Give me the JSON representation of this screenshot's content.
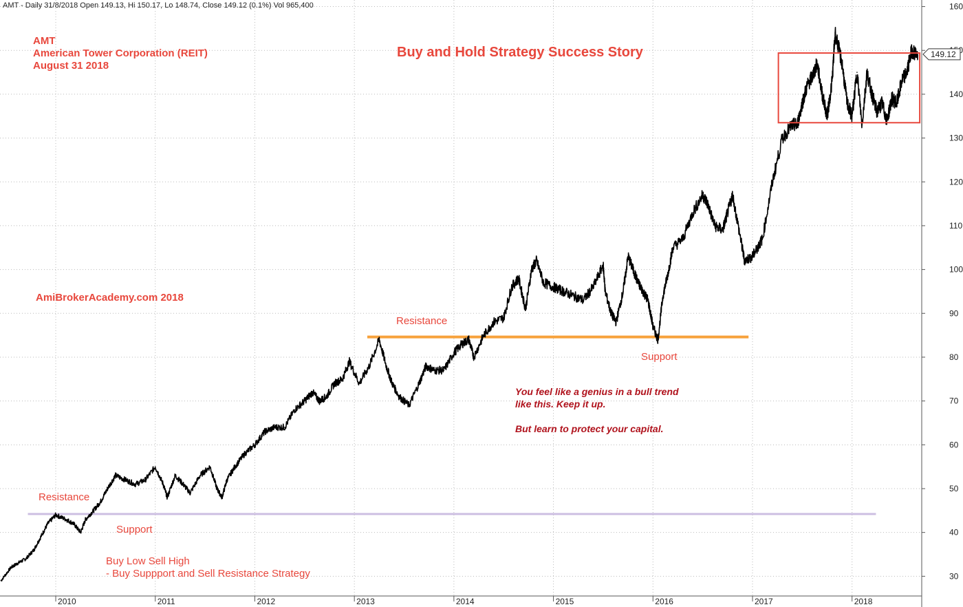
{
  "header": "AMT - Daily 31/8/2018 Open 149.13, Hi 150.17, Lo 148.74, Close 149.12 (0.1%) Vol 965,400",
  "annotations": {
    "ticker": "AMT",
    "company": "American Tower Corporation (REIT)",
    "date": "August 31 2018",
    "title": "Buy and Hold Strategy Success Story",
    "website": "AmiBrokerAcademy.com  2018",
    "resistance_upper": "Resistance",
    "support_upper": "Support",
    "resistance_lower": "Resistance",
    "support_lower": "Support",
    "strategy_line1": "Buy Low Sell High",
    "strategy_line2": "- Buy Suppport and Sell Resistance Strategy",
    "note_line1": "You feel like a genius in a bull trend",
    "note_line2": "like this. Keep it up.",
    "note_line3": "But learn to protect your capital."
  },
  "colors": {
    "annotation": "#e8473c",
    "note": "#b0121c",
    "upper_level_line": "#f7a23c",
    "lower_level_line": "#cdbfe2",
    "box": "#e8473c",
    "price": "#000000"
  },
  "chart_data": {
    "type": "line",
    "title": "Buy and Hold Strategy Success Story",
    "xlabel": "",
    "ylabel": "",
    "xlim": [
      2009.44,
      2018.7
    ],
    "ylim": [
      25.5,
      161.5
    ],
    "y_ticks": [
      30,
      40,
      50,
      60,
      70,
      80,
      90,
      100,
      110,
      120,
      130,
      140,
      150,
      160
    ],
    "x_ticks": [
      {
        "year": 2010,
        "label": "2010"
      },
      {
        "year": 2011,
        "label": "2011"
      },
      {
        "year": 2012,
        "label": "2012"
      },
      {
        "year": 2013,
        "label": "2013"
      },
      {
        "year": 2014,
        "label": "2014"
      },
      {
        "year": 2015,
        "label": "2015"
      },
      {
        "year": 2016,
        "label": "2016"
      },
      {
        "year": 2017,
        "label": "2017"
      },
      {
        "year": 2018,
        "label": "2018"
      }
    ],
    "grid": true,
    "last_close": 149.12,
    "last_close_label": "149.12",
    "levels": [
      {
        "name": "upper",
        "value": 84.6,
        "x_start": 2013.13,
        "x_end": 2016.96
      },
      {
        "name": "lower",
        "value": 44.2,
        "x_start": 2009.72,
        "x_end": 2018.24
      }
    ],
    "box": {
      "x_start": 2017.26,
      "x_end": 2018.68,
      "y_low": 133.5,
      "y_high": 149.4
    },
    "series": [
      {
        "x": [
          2009.45,
          2009.55,
          2009.62,
          2009.7,
          2009.78,
          2009.85,
          2009.92,
          2010.0,
          2010.1,
          2010.18,
          2010.25,
          2010.3,
          2010.38,
          2010.45,
          2010.52,
          2010.6,
          2010.7,
          2010.8,
          2010.9,
          2011.0,
          2011.08,
          2011.12,
          2011.2,
          2011.28,
          2011.35,
          2011.45,
          2011.55,
          2011.62,
          2011.67,
          2011.72,
          2011.8,
          2011.9,
          2012.0,
          2012.1,
          2012.2,
          2012.3,
          2012.4,
          2012.5,
          2012.58,
          2012.65,
          2012.72,
          2012.8,
          2012.88,
          2012.95,
          2013.05,
          2013.15,
          2013.25,
          2013.32,
          2013.38,
          2013.45,
          2013.55,
          2013.65,
          2013.72,
          2013.8,
          2013.9,
          2014.0,
          2014.08,
          2014.15,
          2014.2,
          2014.3,
          2014.4,
          2014.5,
          2014.58,
          2014.65,
          2014.72,
          2014.78,
          2014.83,
          2014.9,
          2015.0,
          2015.1,
          2015.2,
          2015.3,
          2015.4,
          2015.5,
          2015.52,
          2015.58,
          2015.63,
          2015.7,
          2015.75,
          2015.8,
          2015.85,
          2015.9,
          2015.95,
          2016.0,
          2016.05,
          2016.1,
          2016.15,
          2016.2,
          2016.3,
          2016.4,
          2016.5,
          2016.55,
          2016.62,
          2016.7,
          2016.75,
          2016.8,
          2016.88,
          2016.92,
          2017.0,
          2017.05,
          2017.1,
          2017.2,
          2017.3,
          2017.4,
          2017.45,
          2017.5,
          2017.55,
          2017.6,
          2017.65,
          2017.7,
          2017.75,
          2017.8,
          2017.83,
          2017.9,
          2017.95,
          2018.0,
          2018.05,
          2018.1,
          2018.15,
          2018.2,
          2018.25,
          2018.3,
          2018.35,
          2018.4,
          2018.45,
          2018.5,
          2018.55,
          2018.6,
          2018.66
        ],
        "values": [
          29,
          32,
          33,
          34,
          36,
          39,
          42,
          44,
          43,
          42,
          40,
          43,
          45,
          47,
          50,
          53,
          52,
          51,
          52,
          55,
          51,
          48,
          53,
          51,
          49,
          53,
          55,
          50,
          48,
          52,
          55,
          58,
          60,
          63,
          64,
          64,
          68,
          70,
          72,
          70,
          71,
          74,
          75,
          79,
          74,
          78,
          84,
          78,
          74,
          71,
          69,
          74,
          78,
          77,
          77,
          81,
          83,
          84,
          80,
          85,
          88,
          89,
          96,
          98,
          91,
          100,
          102,
          97,
          96,
          95,
          94,
          93,
          96,
          101,
          95,
          90,
          88,
          95,
          103,
          100,
          97,
          95,
          93,
          87,
          84,
          94,
          99,
          105,
          107,
          113,
          117,
          115,
          110,
          109,
          113,
          117,
          107,
          102,
          103,
          105,
          107,
          120,
          130,
          133,
          133,
          138,
          142,
          144,
          147,
          140,
          135,
          143,
          154,
          147,
          138,
          135,
          145,
          133,
          145,
          140,
          136,
          138,
          134,
          139,
          138,
          143,
          145,
          150,
          149
        ]
      }
    ]
  }
}
